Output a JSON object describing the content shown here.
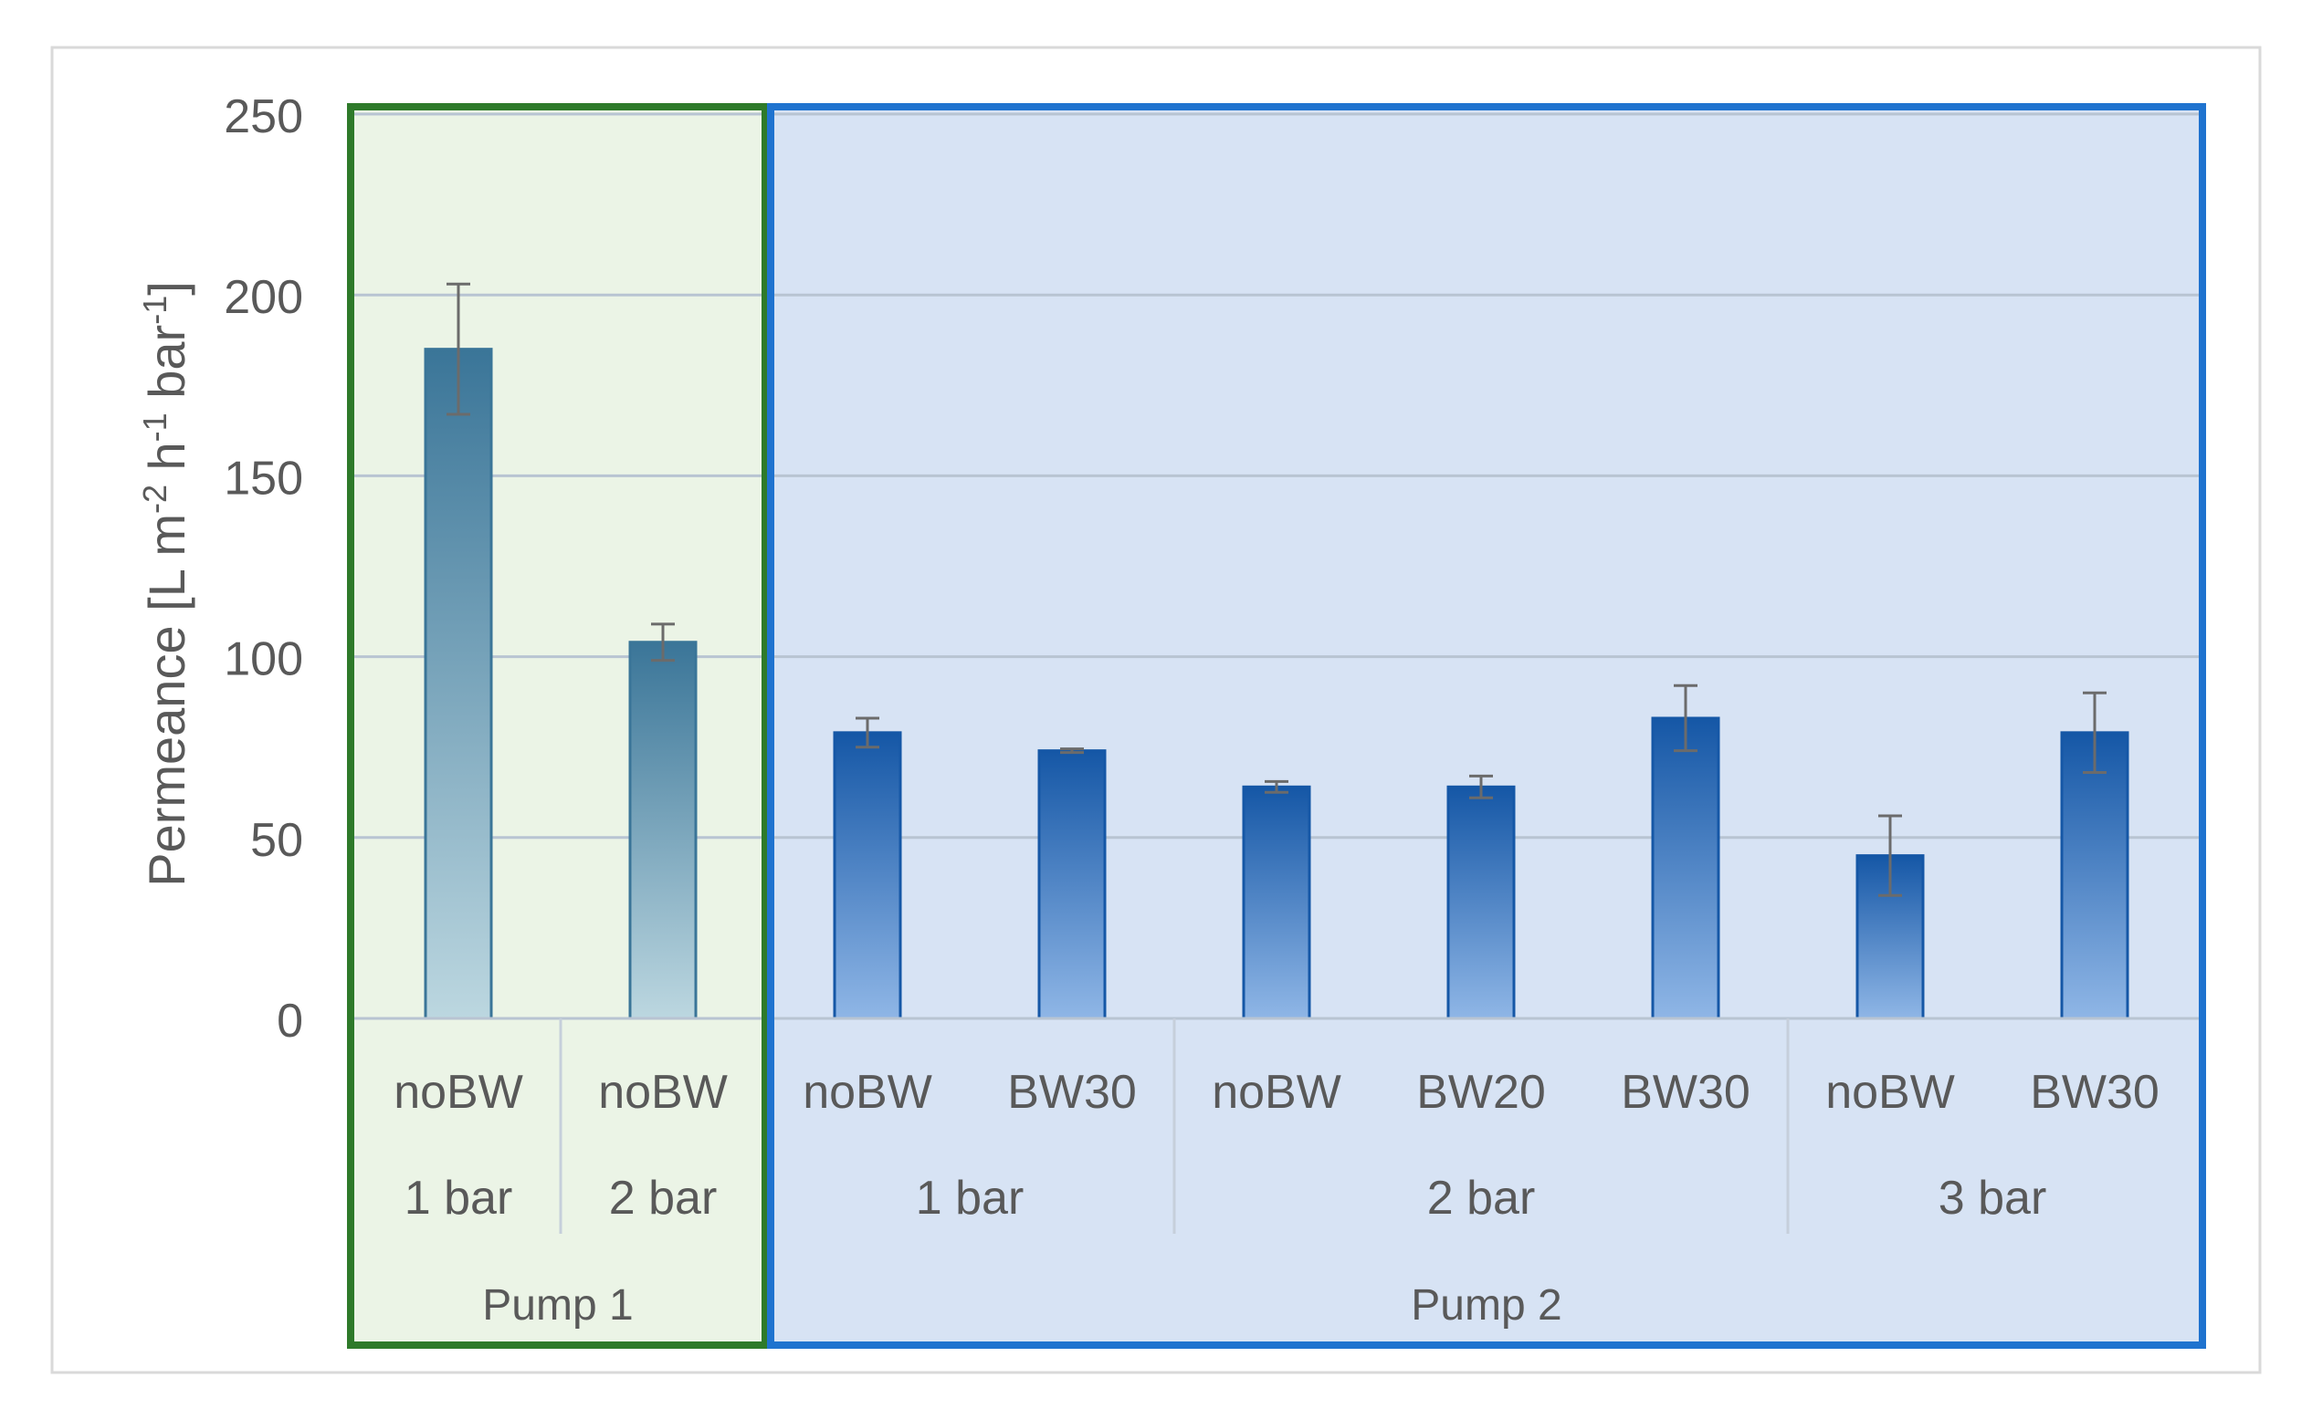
{
  "chart_data": {
    "type": "bar",
    "title": "",
    "ylabel": "Permeance [L m-2 h-1 bar-1]",
    "ylabel_parts": {
      "p1": "Permeance [L m",
      "s1": "-2",
      "p2": " h",
      "s2": "-1",
      "p3": " bar",
      "s3": "-1",
      "p4": "]"
    },
    "ylim": [
      0,
      250
    ],
    "yticks": [
      "0",
      "50",
      "100",
      "150",
      "200",
      "250"
    ],
    "grid": true,
    "categories": [
      "noBW",
      "noBW",
      "noBW",
      "BW30",
      "noBW",
      "BW20",
      "BW30",
      "noBW",
      "BW30"
    ],
    "values": [
      185,
      104,
      79,
      74,
      64,
      64,
      83,
      45,
      79
    ],
    "error": [
      18,
      5,
      4,
      0.5,
      1.5,
      3,
      9,
      11,
      11
    ],
    "pressure_groups": [
      {
        "label": "1 bar",
        "start": 0,
        "end": 0
      },
      {
        "label": "2 bar",
        "start": 1,
        "end": 1
      },
      {
        "label": "1 bar",
        "start": 2,
        "end": 3
      },
      {
        "label": "2 bar",
        "start": 4,
        "end": 6
      },
      {
        "label": "3 bar",
        "start": 7,
        "end": 8
      }
    ],
    "pump_groups": [
      {
        "label": "Pump 1",
        "start": 0,
        "end": 1
      },
      {
        "label": "Pump 2",
        "start": 2,
        "end": 8
      }
    ],
    "colors": {
      "pump1_fill": "#ebf4e6",
      "pump1_border": "#2e7a2a",
      "pump2_fill": "#d7e3f4",
      "pump2_border": "#1f73cf",
      "pump1_bar_top": "#3a7598",
      "pump1_bar_bottom": "#bcd7e0",
      "pump2_bar_top": "#1557a6",
      "pump2_bar_bottom": "#8fb6e6",
      "gridline": "#b8c4d2",
      "text": "#595959"
    }
  }
}
